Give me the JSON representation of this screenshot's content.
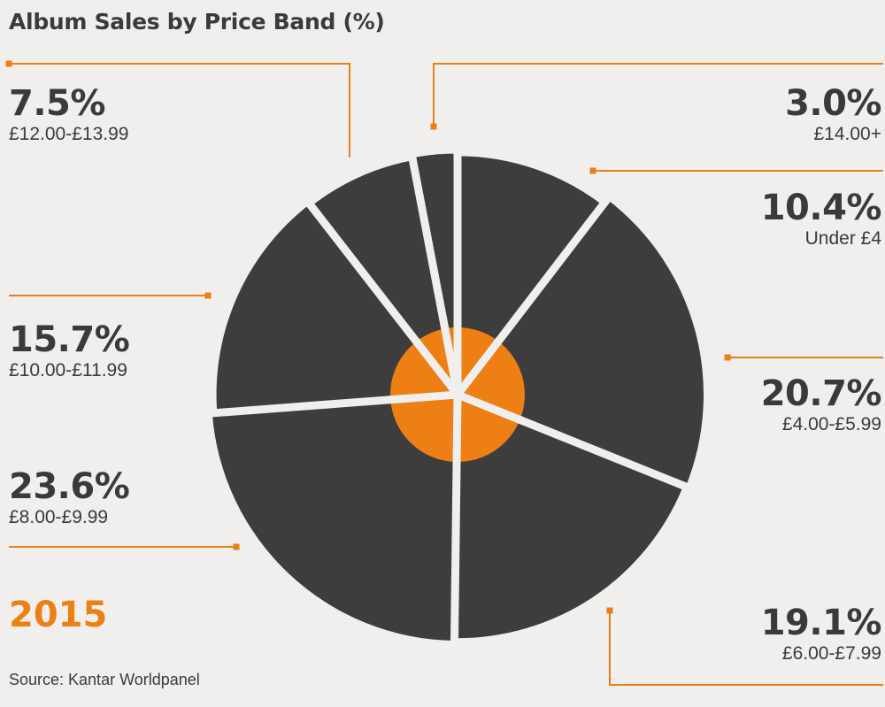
{
  "chart_data": {
    "type": "pie",
    "title": "Album Sales by Price Band (%)",
    "year": "2015",
    "source": "Source: Kantar Worldpanel",
    "slices": [
      {
        "label": "Under £4",
        "value": 10.4,
        "display": "10.4%"
      },
      {
        "label": "£4.00-£5.99",
        "value": 20.7,
        "display": "20.7%"
      },
      {
        "label": "£6.00-£7.99",
        "value": 19.1,
        "display": "19.1%"
      },
      {
        "label": "£8.00-£9.99",
        "value": 23.6,
        "display": "23.6%"
      },
      {
        "label": "£10.00-£11.99",
        "value": 15.7,
        "display": "15.7%"
      },
      {
        "label": "£12.00-£13.99",
        "value": 7.5,
        "display": "7.5%"
      },
      {
        "label": "£14.00+",
        "value": 3.0,
        "display": "3.0%"
      }
    ]
  },
  "colors": {
    "background": "#f0efee",
    "slice": "#3d3d3d",
    "accent": "#ee7f14",
    "text": "#3a3a3a"
  }
}
